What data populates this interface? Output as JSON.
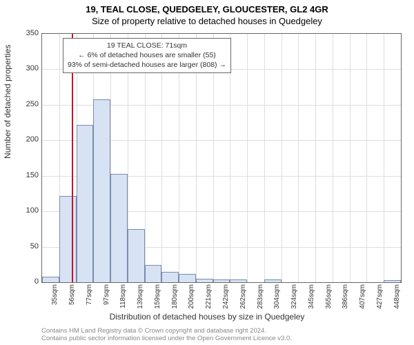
{
  "title_line1": "19, TEAL CLOSE, QUEDGELEY, GLOUCESTER, GL2 4GR",
  "title_line2": "Size of property relative to detached houses in Quedgeley",
  "ylabel": "Number of detached properties",
  "xlabel": "Distribution of detached houses by size in Quedgeley",
  "credit_line1": "Contains HM Land Registry data © Crown copyright and database right 2024.",
  "credit_line2": "Contains public sector information licensed under the Open Government Licence v3.0.",
  "chart": {
    "type": "histogram",
    "ylim": [
      0,
      350
    ],
    "ytick_step": 50,
    "x_start": 35,
    "x_step": 20.67,
    "n_bins": 21,
    "xtick_labels": [
      "35sqm",
      "56sqm",
      "77sqm",
      "97sqm",
      "118sqm",
      "139sqm",
      "159sqm",
      "180sqm",
      "200sqm",
      "221sqm",
      "242sqm",
      "262sqm",
      "283sqm",
      "304sqm",
      "324sqm",
      "345sqm",
      "365sqm",
      "386sqm",
      "407sqm",
      "427sqm",
      "448sqm"
    ],
    "values": [
      8,
      122,
      222,
      258,
      153,
      75,
      24,
      15,
      12,
      5,
      4,
      4,
      0,
      4,
      0,
      0,
      0,
      0,
      0,
      0,
      3
    ],
    "bar_fill": "#d7e3f4",
    "bar_stroke": "#7a8aa8",
    "grid_color": "#dddddd",
    "axis_color": "#666666",
    "ref_line_color": "#c8102e",
    "ref_value_sqm": 71,
    "annot": {
      "line1": "19 TEAL CLOSE: 71sqm",
      "line2": "← 6% of detached houses are smaller (55)",
      "line3": "93% of semi-detached houses are larger (808) →"
    }
  }
}
